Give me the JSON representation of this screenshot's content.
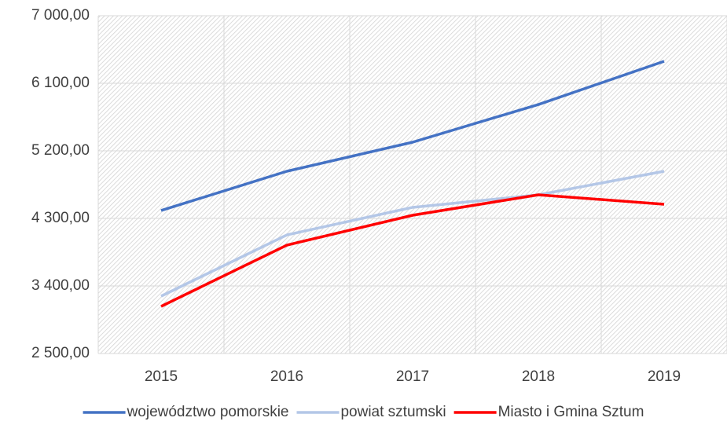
{
  "chart_data": {
    "type": "line",
    "categories": [
      "2015",
      "2016",
      "2017",
      "2018",
      "2019"
    ],
    "series": [
      {
        "name": "województwo pomorskie",
        "color": "#4472c4",
        "values": [
          4405,
          4928,
          5315,
          5817,
          6393
        ]
      },
      {
        "name": "powiat sztumski",
        "color": "#b4c7e7",
        "values": [
          3264,
          4080,
          4447,
          4614,
          4928
        ]
      },
      {
        "name": "Miasto i Gmina Sztum",
        "color": "#ff0000",
        "values": [
          3128,
          3944,
          4342,
          4614,
          4488
        ]
      }
    ],
    "ylim": [
      2500,
      7000
    ],
    "yticks": [
      {
        "value": 2500,
        "label": "2 500,00"
      },
      {
        "value": 3400,
        "label": "3 400,00"
      },
      {
        "value": 4300,
        "label": "4 300,00"
      },
      {
        "value": 5200,
        "label": "5 200,00"
      },
      {
        "value": 6100,
        "label": "6 100,00"
      },
      {
        "value": 7000,
        "label": "7 000,00"
      }
    ],
    "grid": true,
    "legend": "bottom"
  }
}
